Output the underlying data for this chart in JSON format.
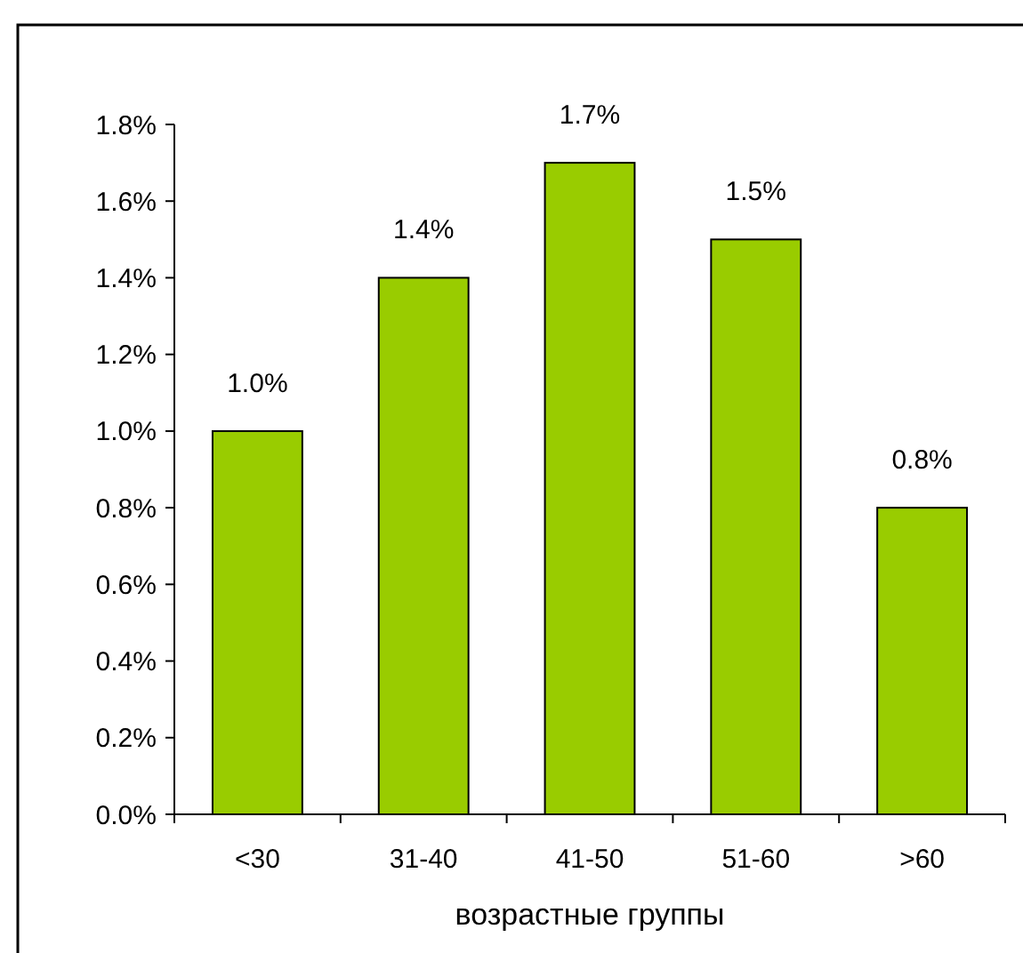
{
  "chart_data": {
    "type": "bar",
    "xlabel": "возрастные группы",
    "categories": [
      "<30",
      "31-40",
      "41-50",
      "51-60",
      ">60"
    ],
    "values": [
      1.0,
      1.4,
      1.7,
      1.5,
      0.8
    ],
    "color": "#99cc00",
    "value_labels": [
      "1.0%",
      "1.4%",
      "1.7%",
      "1.5%",
      "0.8%"
    ],
    "ylim": [
      0,
      1.8
    ],
    "yticks": [
      {
        "value": 0,
        "label": "0.0%"
      },
      {
        "value": 0.2,
        "label": "0.2%"
      },
      {
        "value": 0.4,
        "label": "0.4%"
      },
      {
        "value": 0.6,
        "label": "0.6%"
      },
      {
        "value": 0.8,
        "label": "0.8%"
      },
      {
        "value": 1.0,
        "label": "1.0%"
      },
      {
        "value": 1.2,
        "label": "1.2%"
      },
      {
        "value": 1.4,
        "label": "1.4%"
      },
      {
        "value": 1.6,
        "label": "1.6%"
      },
      {
        "value": 1.8,
        "label": "1.8%"
      }
    ],
    "grid": false
  }
}
